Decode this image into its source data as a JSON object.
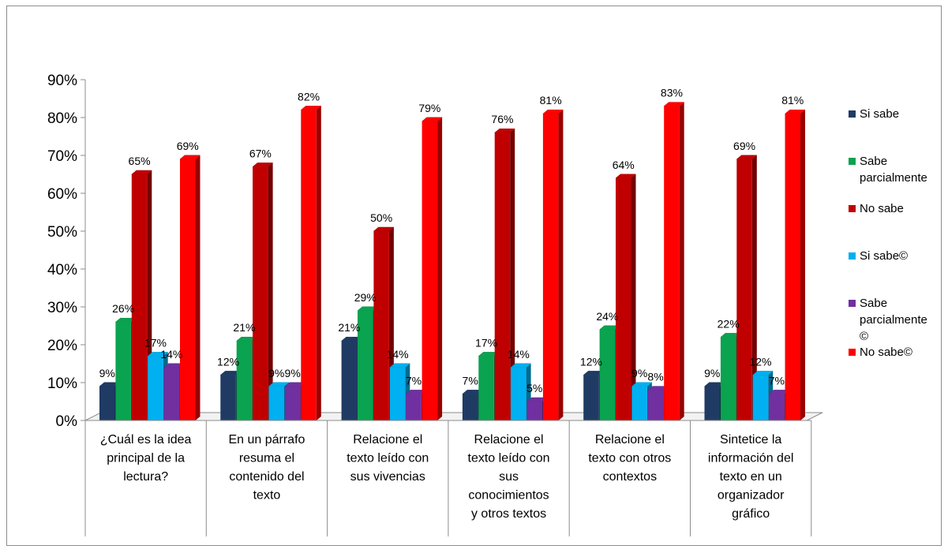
{
  "chart_data": {
    "type": "bar",
    "categories": [
      [
        "¿Cuál es la idea",
        "principal de la",
        "lectura?"
      ],
      [
        "En un párrafo",
        "resuma el",
        "contenido del",
        "texto"
      ],
      [
        "Relacione el",
        "texto leído con",
        "sus vivencias"
      ],
      [
        "Relacione el",
        "texto leído con",
        "sus",
        "conocimientos",
        "y otros textos"
      ],
      [
        "Relacione el",
        "texto con otros",
        "contextos"
      ],
      [
        "Sintetice la",
        "información del",
        "texto en un",
        "organizador",
        "gráfico"
      ]
    ],
    "series": [
      {
        "name": "Si sabe",
        "legend_lines": [
          "Si sabe"
        ],
        "color": "#1f3b64",
        "values": [
          9,
          12,
          21,
          7,
          12,
          9
        ]
      },
      {
        "name": "Sabe parcialmente",
        "legend_lines": [
          "Sabe",
          "parcialmente"
        ],
        "color": "#0aa34f",
        "values": [
          26,
          21,
          29,
          17,
          24,
          22
        ]
      },
      {
        "name": "No sabe",
        "legend_lines": [
          "No sabe"
        ],
        "color": "#c00000",
        "values": [
          65,
          67,
          50,
          76,
          64,
          69
        ]
      },
      {
        "name": "Si sabe©",
        "legend_lines": [
          "Si sabe©"
        ],
        "color": "#00b0f0",
        "values": [
          17,
          9,
          14,
          14,
          9,
          12
        ]
      },
      {
        "name": "Sabe parcialmente ©",
        "legend_lines": [
          "Sabe",
          "parcialmente",
          "©"
        ],
        "color": "#7030a0",
        "values": [
          14,
          9,
          7,
          5,
          8,
          7
        ]
      },
      {
        "name": "No sabe©",
        "legend_lines": [
          "No sabe©"
        ],
        "color": "#ff0000",
        "values": [
          69,
          82,
          79,
          81,
          83,
          81
        ]
      }
    ],
    "ylim": [
      0,
      90
    ],
    "yticks": [
      "0%",
      "10%",
      "20%",
      "30%",
      "40%",
      "50%",
      "60%",
      "70%",
      "80%",
      "90%"
    ],
    "value_suffix": "%",
    "legend_position": "right",
    "grid": false,
    "style": "3d-clustered-column"
  }
}
